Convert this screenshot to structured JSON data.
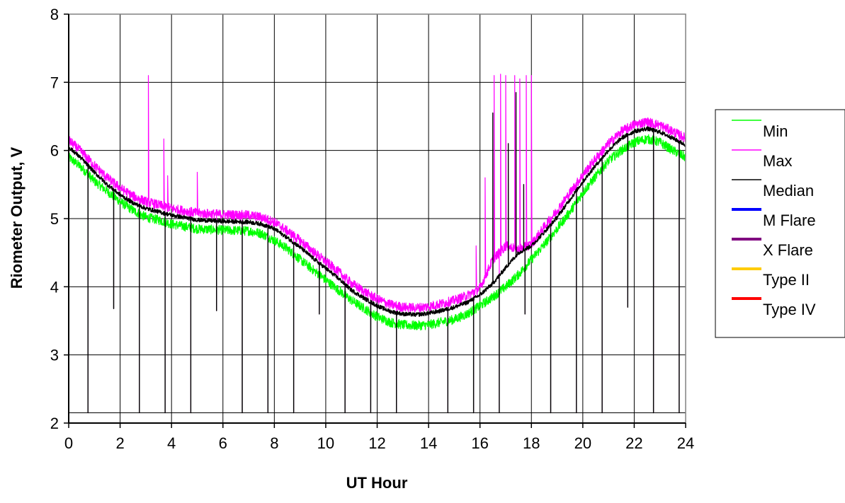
{
  "chart_data": {
    "type": "line",
    "title": "",
    "xlabel": "UT Hour",
    "ylabel": "Riometer Output, V",
    "xlim": [
      0,
      24
    ],
    "ylim": [
      2,
      8
    ],
    "x_ticks": [
      0,
      2,
      4,
      6,
      8,
      10,
      12,
      14,
      16,
      18,
      20,
      22,
      24
    ],
    "y_ticks": [
      2,
      3,
      4,
      5,
      6,
      7,
      8
    ],
    "grid": true,
    "legend_position": "right",
    "series": [
      {
        "name": "Min",
        "color": "#00ff00",
        "x": [
          0,
          0.5,
          1,
          1.5,
          2,
          2.5,
          3,
          3.5,
          4,
          5,
          6,
          7,
          7.5,
          8,
          8.5,
          9,
          9.5,
          10,
          10.5,
          11,
          11.5,
          12,
          12.5,
          13,
          13.5,
          14,
          14.5,
          15,
          15.5,
          16,
          16.5,
          17,
          17.5,
          18,
          18.5,
          19,
          19.5,
          20,
          20.5,
          21,
          21.5,
          22,
          22.5,
          23,
          23.5,
          24
        ],
        "values": [
          5.9,
          5.75,
          5.55,
          5.4,
          5.25,
          5.12,
          5.02,
          4.98,
          4.92,
          4.85,
          4.83,
          4.82,
          4.78,
          4.68,
          4.56,
          4.4,
          4.25,
          4.1,
          3.95,
          3.8,
          3.68,
          3.56,
          3.48,
          3.44,
          3.43,
          3.44,
          3.48,
          3.52,
          3.6,
          3.72,
          3.85,
          4.0,
          4.18,
          4.4,
          4.62,
          4.85,
          5.1,
          5.38,
          5.62,
          5.85,
          6.0,
          6.12,
          6.17,
          6.12,
          6.0,
          5.9
        ]
      },
      {
        "name": "Max",
        "color": "#ff00ff",
        "x": [
          0,
          0.5,
          1,
          1.5,
          2,
          2.5,
          3,
          3.5,
          4,
          5,
          6,
          7,
          7.5,
          8,
          8.5,
          9,
          9.5,
          10,
          10.5,
          11,
          11.5,
          12,
          12.5,
          13,
          13.5,
          14,
          14.5,
          15,
          15.5,
          16,
          16.5,
          17,
          17.5,
          18,
          18.5,
          19,
          19.5,
          20,
          20.5,
          21,
          21.5,
          22,
          22.5,
          23,
          23.5,
          24
        ],
        "values": [
          6.15,
          5.98,
          5.78,
          5.6,
          5.45,
          5.33,
          5.25,
          5.2,
          5.15,
          5.08,
          5.06,
          5.05,
          5.02,
          4.95,
          4.82,
          4.68,
          4.52,
          4.37,
          4.22,
          4.05,
          3.93,
          3.82,
          3.74,
          3.7,
          3.69,
          3.71,
          3.75,
          3.8,
          3.87,
          3.98,
          4.4,
          4.6,
          4.55,
          4.62,
          4.88,
          5.12,
          5.38,
          5.64,
          5.88,
          6.1,
          6.28,
          6.38,
          6.42,
          6.37,
          6.28,
          6.18
        ]
      },
      {
        "name": "Median",
        "color": "#000000",
        "x": [
          0,
          0.5,
          1,
          1.5,
          2,
          2.5,
          3,
          3.5,
          4,
          5,
          6,
          7,
          7.5,
          8,
          8.5,
          9,
          9.5,
          10,
          10.5,
          11,
          11.5,
          12,
          12.5,
          13,
          13.5,
          14,
          14.5,
          15,
          15.5,
          16,
          16.5,
          17,
          17.5,
          18,
          18.5,
          19,
          19.5,
          20,
          20.5,
          21,
          21.5,
          22,
          22.5,
          23,
          23.5,
          24
        ],
        "values": [
          6.05,
          5.88,
          5.68,
          5.5,
          5.35,
          5.23,
          5.15,
          5.1,
          5.05,
          4.98,
          4.96,
          4.95,
          4.92,
          4.85,
          4.72,
          4.58,
          4.42,
          4.27,
          4.12,
          3.95,
          3.83,
          3.72,
          3.64,
          3.6,
          3.59,
          3.61,
          3.65,
          3.7,
          3.77,
          3.88,
          4.05,
          4.28,
          4.5,
          4.6,
          4.8,
          5.02,
          5.28,
          5.54,
          5.78,
          6.0,
          6.18,
          6.28,
          6.32,
          6.27,
          6.18,
          6.08
        ]
      },
      {
        "name": "M Flare",
        "color": "#0000ff",
        "x": [],
        "values": []
      },
      {
        "name": "X Flare",
        "color": "#800080",
        "x": [],
        "values": []
      },
      {
        "name": "Type II",
        "color": "#ffcc00",
        "x": [],
        "values": []
      },
      {
        "name": "Type IV",
        "color": "#ff0000",
        "x": [],
        "values": []
      }
    ],
    "max_spikes": [
      {
        "x": 3.1,
        "y": 7.1
      },
      {
        "x": 3.7,
        "y": 6.17
      },
      {
        "x": 3.85,
        "y": 5.63
      },
      {
        "x": 5.0,
        "y": 5.68
      },
      {
        "x": 15.85,
        "y": 4.6
      },
      {
        "x": 16.2,
        "y": 5.6
      },
      {
        "x": 16.55,
        "y": 7.1
      },
      {
        "x": 16.8,
        "y": 7.12
      },
      {
        "x": 17.0,
        "y": 7.1
      },
      {
        "x": 17.35,
        "y": 7.1
      },
      {
        "x": 17.55,
        "y": 7.05
      },
      {
        "x": 17.8,
        "y": 7.1
      },
      {
        "x": 18.0,
        "y": 7.1
      }
    ],
    "median_spikes": [
      {
        "x": 16.5,
        "y": 6.55
      },
      {
        "x": 17.4,
        "y": 6.85
      },
      {
        "x": 17.1,
        "y": 6.1
      },
      {
        "x": 17.7,
        "y": 5.5
      }
    ],
    "dropouts": [
      {
        "x": 0.75,
        "y": 2.15
      },
      {
        "x": 1.75,
        "y": 3.68
      },
      {
        "x": 2.75,
        "y": 2.15
      },
      {
        "x": 3.75,
        "y": 2.15
      },
      {
        "x": 4.75,
        "y": 2.15
      },
      {
        "x": 5.75,
        "y": 3.65
      },
      {
        "x": 6.75,
        "y": 2.15
      },
      {
        "x": 7.75,
        "y": 2.15
      },
      {
        "x": 8.75,
        "y": 2.15
      },
      {
        "x": 9.75,
        "y": 3.6
      },
      {
        "x": 10.75,
        "y": 2.15
      },
      {
        "x": 11.75,
        "y": 2.15
      },
      {
        "x": 12.75,
        "y": 2.15
      },
      {
        "x": 14.75,
        "y": 2.15
      },
      {
        "x": 15.75,
        "y": 2.15
      },
      {
        "x": 16.75,
        "y": 2.15
      },
      {
        "x": 17.75,
        "y": 3.6
      },
      {
        "x": 18.75,
        "y": 2.15
      },
      {
        "x": 19.75,
        "y": 2.15
      },
      {
        "x": 20.75,
        "y": 2.15
      },
      {
        "x": 21.75,
        "y": 3.7
      },
      {
        "x": 22.75,
        "y": 2.15
      },
      {
        "x": 23.75,
        "y": 2.15
      }
    ]
  }
}
